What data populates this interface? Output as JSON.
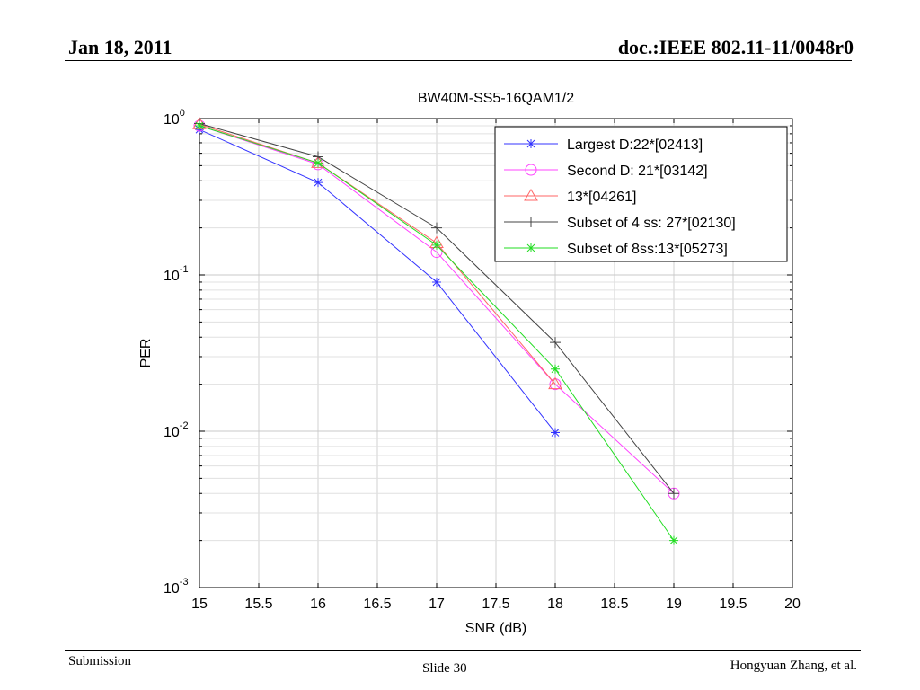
{
  "slide": {
    "date": "Jan 18, 2011",
    "doc_id": "doc.:IEEE 802.11-11/0048r0",
    "footer_left": "Submission",
    "footer_center": "Slide 30",
    "footer_right": "Hongyuan Zhang, et al."
  },
  "chart_data": {
    "type": "line",
    "title": "BW40M-SS5-16QAM1/2",
    "xlabel": "SNR (dB)",
    "ylabel": "PER",
    "xlim": [
      15,
      20
    ],
    "ylim": [
      0.001,
      1
    ],
    "y_scale": "log",
    "grid": true,
    "legend_position": "top-right",
    "x_ticks": [
      "15",
      "15.5",
      "16",
      "16.5",
      "17",
      "17.5",
      "18",
      "18.5",
      "19",
      "19.5",
      "20"
    ],
    "y_ticks": [
      {
        "base": "10",
        "exp": "0"
      },
      {
        "base": "10",
        "exp": "-1"
      },
      {
        "base": "10",
        "exp": "-2"
      },
      {
        "base": "10",
        "exp": "-3"
      }
    ],
    "series": [
      {
        "name": "Largest D:22*[02413]",
        "color": "#3333ff",
        "marker": "star",
        "x": [
          15,
          16,
          17,
          18
        ],
        "y": [
          0.85,
          0.39,
          0.09,
          0.0098
        ]
      },
      {
        "name": "Second D: 21*[03142]",
        "color": "#ff44ff",
        "marker": "circle",
        "x": [
          15,
          16,
          17,
          18,
          19
        ],
        "y": [
          0.9,
          0.51,
          0.14,
          0.02,
          0.004
        ]
      },
      {
        "name": "13*[04261]",
        "color": "#ff6666",
        "marker": "triangle",
        "x": [
          15,
          16,
          17,
          18
        ],
        "y": [
          0.92,
          0.52,
          0.16,
          0.02
        ]
      },
      {
        "name": "Subset of 4 ss: 27*[02130]",
        "color": "#444444",
        "marker": "plus",
        "x": [
          15,
          16,
          17,
          18,
          19
        ],
        "y": [
          0.93,
          0.57,
          0.2,
          0.037,
          0.004
        ]
      },
      {
        "name": "Subset of 8ss:13*[05273]",
        "color": "#22dd22",
        "marker": "star",
        "x": [
          15,
          16,
          17,
          18,
          19
        ],
        "y": [
          0.9,
          0.52,
          0.155,
          0.025,
          0.002
        ]
      }
    ]
  }
}
